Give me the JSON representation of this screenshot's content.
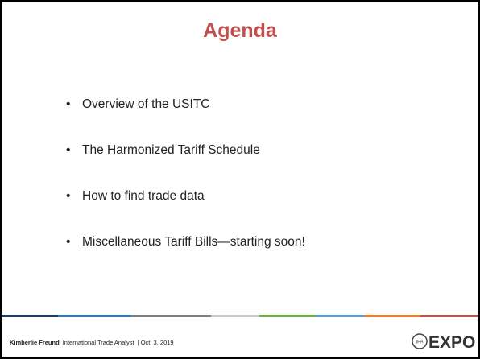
{
  "title": "Agenda",
  "bullets": [
    "Overview of the USITC",
    "The Harmonized Tariff Schedule",
    "How to find trade data",
    "Miscellaneous Tariff Bills—starting soon!"
  ],
  "footer": {
    "name": "Kimberlie Freund",
    "details": "| International Trade Analyst  | Oct. 3, 2019"
  },
  "logo": {
    "badge": "IFA",
    "text": "EXPO"
  }
}
